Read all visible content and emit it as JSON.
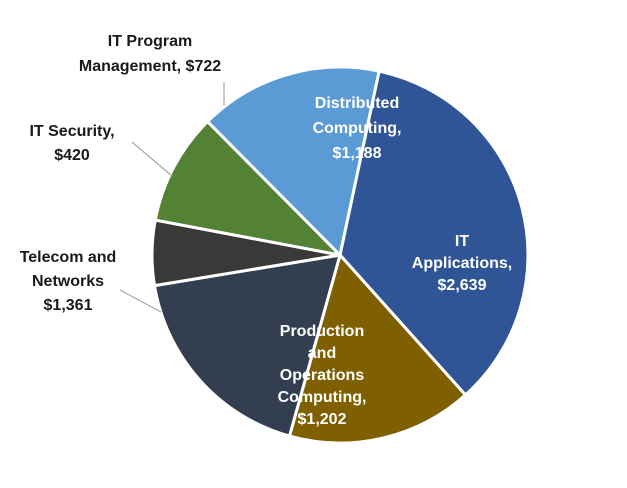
{
  "chart_data": {
    "type": "pie",
    "title": "",
    "start_angle_deg": 12,
    "direction": "clockwise",
    "legend": "none",
    "slices": [
      {
        "name": "IT Applications",
        "value": 2639,
        "color": "#2f5597",
        "label_lines": [
          "IT",
          "Applications,",
          "$2,639"
        ],
        "label_color": "#ffffff"
      },
      {
        "name": "Production and Operations Computing",
        "value": 1202,
        "color": "#7f6000",
        "label_lines": [
          "Production",
          "and",
          "Operations",
          "Computing,",
          "$1,202"
        ],
        "label_color": "#ffffff"
      },
      {
        "name": "Telecom and Networks",
        "value": 1361,
        "color": "#333f50",
        "label_lines": [
          "Telecom and",
          "Networks",
          "$1,361"
        ],
        "label_color": "#1a1a1a"
      },
      {
        "name": "IT Security",
        "value": 420,
        "color": "#3b3838",
        "label_lines": [
          "IT Security,",
          "$420"
        ],
        "label_color": "#1a1a1a"
      },
      {
        "name": "IT Program Management",
        "value": 722,
        "color": "#548235",
        "label_lines": [
          "IT Program",
          "Management, $722"
        ],
        "label_color": "#1a1a1a"
      },
      {
        "name": "Distributed Computing",
        "value": 1188,
        "color": "#5b9bd5",
        "label_lines": [
          "Distributed",
          "Computing,",
          "$1,188"
        ],
        "label_color": "#ffffff"
      }
    ]
  }
}
